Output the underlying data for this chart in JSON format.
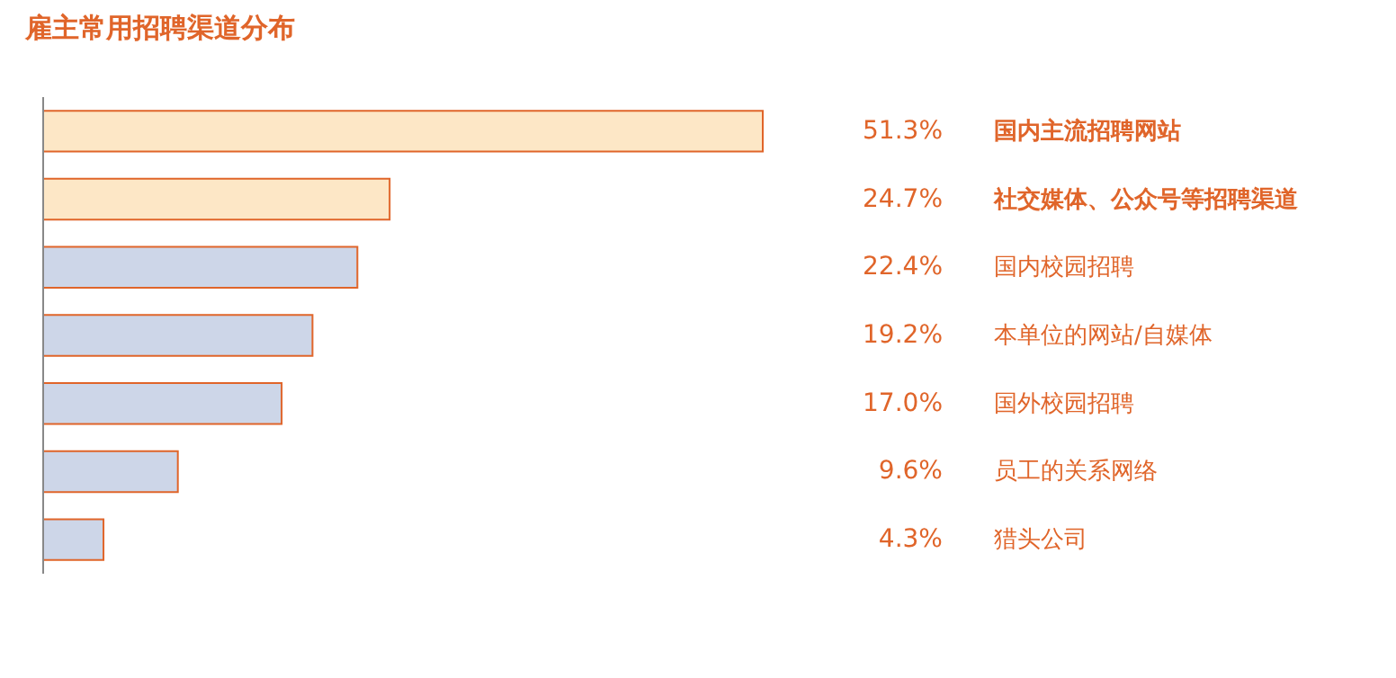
{
  "chart_data": {
    "type": "bar",
    "orientation": "horizontal",
    "title": "雇主常用招聘渠道分布",
    "categories": [
      "国内主流招聘网站",
      "社交媒体、公众号等招聘渠道",
      "国内校园招聘",
      "本单位的网站/自媒体",
      "国外校园招聘",
      "员工的关系网络",
      "猎头公司"
    ],
    "values": [
      51.3,
      24.7,
      22.4,
      19.2,
      17.0,
      9.6,
      4.3
    ],
    "value_labels": [
      "51.3%",
      "24.7%",
      "22.4%",
      "19.2%",
      "17.0%",
      "9.6%",
      "4.3%"
    ],
    "colors": [
      "#fde7c6",
      "#fde7c6",
      "#cdd6e8",
      "#cdd6e8",
      "#cdd6e8",
      "#cdd6e8",
      "#cdd6e8"
    ]
  }
}
